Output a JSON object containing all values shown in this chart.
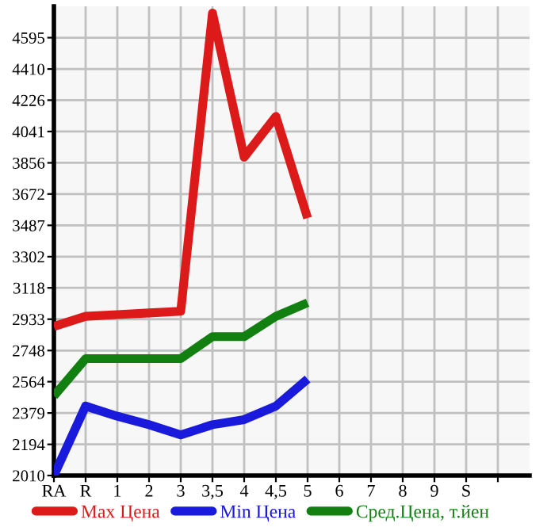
{
  "chart_data": {
    "type": "line",
    "categories": [
      "RA",
      "R",
      "1",
      "2",
      "3",
      "3,5",
      "4",
      "4,5",
      "5",
      "6",
      "7",
      "8",
      "9",
      "S",
      null
    ],
    "series": [
      {
        "name": "Max Цена",
        "color": "#dd1a1a",
        "values": [
          2890,
          2950,
          2960,
          2970,
          2980,
          4740,
          3890,
          4130,
          3530,
          null,
          null,
          null,
          null,
          null,
          null
        ]
      },
      {
        "name": "Min Цена",
        "color": "#1a1add",
        "values": [
          2010,
          2420,
          2360,
          2310,
          2250,
          2310,
          2340,
          2420,
          2580,
          null,
          null,
          null,
          null,
          null,
          null
        ]
      },
      {
        "name": "Сред.Цена, т.йен",
        "color": "#118011",
        "values": [
          2480,
          2700,
          2700,
          2700,
          2700,
          2830,
          2830,
          2950,
          3030,
          null,
          null,
          null,
          null,
          null,
          null
        ]
      }
    ],
    "ylim": [
      2010,
      4780
    ],
    "yticks": [
      2010,
      2194,
      2379,
      2564,
      2748,
      2933,
      3118,
      3302,
      3487,
      3672,
      3856,
      4041,
      4226,
      4410,
      4595
    ],
    "grid": true,
    "legend": "bottom",
    "marker": "none",
    "line_style": "solid"
  }
}
